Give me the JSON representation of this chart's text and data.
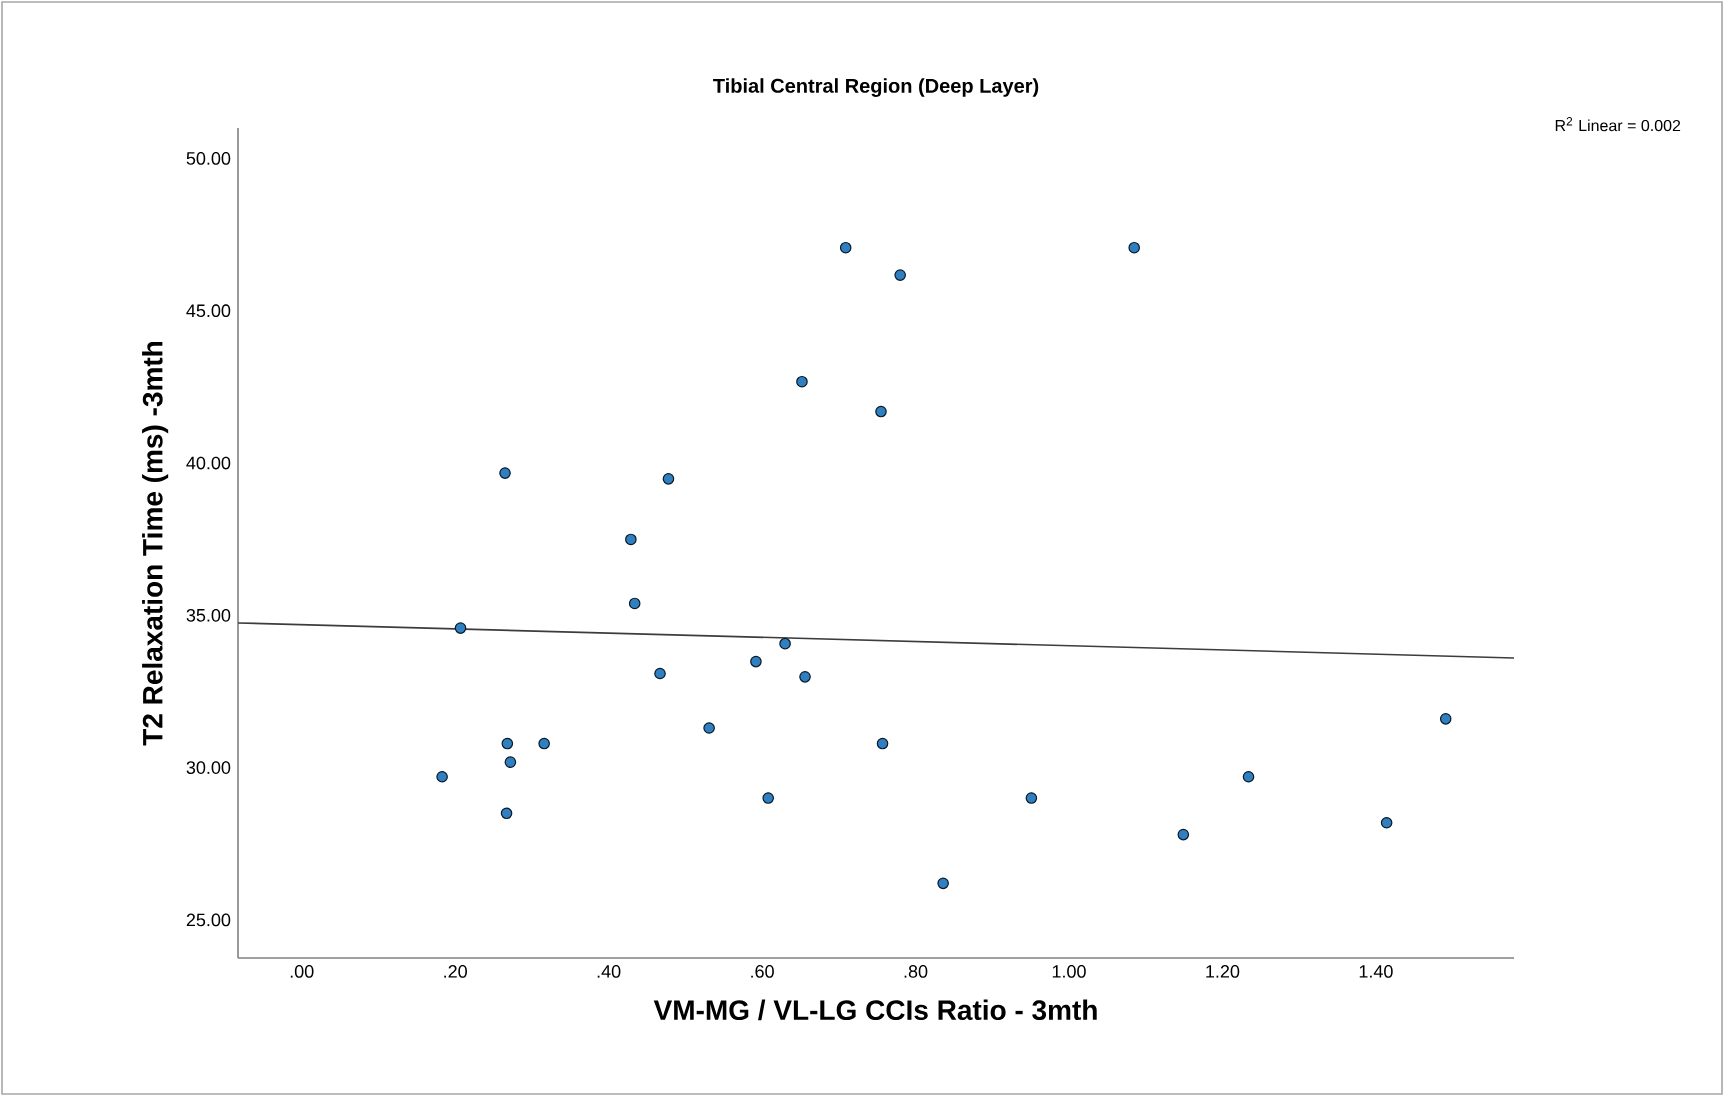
{
  "chart_data": {
    "type": "scatter",
    "title": "Tibial Central Region (Deep Layer)",
    "xlabel": "VM-MG / VL-LG CCIs Ratio - 3mth",
    "ylabel": "T2 Relaxation Time (ms) -3mth",
    "annotations": [
      "R$^{2}$ Linear = 0.002"
    ],
    "xlim": [
      -0.083,
      1.58
    ],
    "ylim": [
      23.75,
      51
    ],
    "xticks": [
      {
        "value": 0,
        "label": ".00"
      },
      {
        "value": 0.2,
        "label": ".20"
      },
      {
        "value": 0.4,
        "label": ".40"
      },
      {
        "value": 0.6,
        "label": ".60"
      },
      {
        "value": 0.8,
        "label": ".80"
      },
      {
        "value": 1.0,
        "label": "1.00"
      },
      {
        "value": 1.2,
        "label": "1.20"
      },
      {
        "value": 1.4,
        "label": "1.40"
      }
    ],
    "yticks": [
      {
        "value": 25,
        "label": "25.00"
      },
      {
        "value": 30,
        "label": "30.00"
      },
      {
        "value": 35,
        "label": "35.00"
      },
      {
        "value": 40,
        "label": "40.00"
      },
      {
        "value": 45,
        "label": "45.00"
      },
      {
        "value": 50,
        "label": "50.00"
      }
    ],
    "series": [
      {
        "color": "#2f7fc1",
        "marker": "circle",
        "x": [
          0.709,
          0.78,
          0.652,
          0.755,
          0.265,
          0.478,
          0.429,
          0.434,
          0.207,
          0.63,
          0.592,
          0.467,
          0.656,
          0.531,
          0.268,
          0.316,
          0.757,
          0.272,
          0.183,
          0.608,
          0.267,
          0.836,
          1.085,
          1.491,
          1.234,
          0.951,
          1.414,
          1.149
        ],
        "values": [
          47.07,
          46.17,
          42.67,
          41.69,
          39.67,
          39.48,
          37.49,
          35.39,
          34.58,
          34.07,
          33.48,
          33.09,
          32.98,
          31.3,
          30.79,
          30.79,
          30.79,
          30.18,
          29.7,
          29.0,
          28.5,
          26.2,
          47.07,
          31.6,
          29.7,
          29.0,
          28.19,
          27.8
        ]
      },
      {
        "type": "line",
        "color": "#3c3c3c",
        "line_style": "solid",
        "marker": "none",
        "x": [
          -0.083,
          1.58
        ],
        "values": [
          34.75,
          33.6
        ]
      }
    ]
  }
}
